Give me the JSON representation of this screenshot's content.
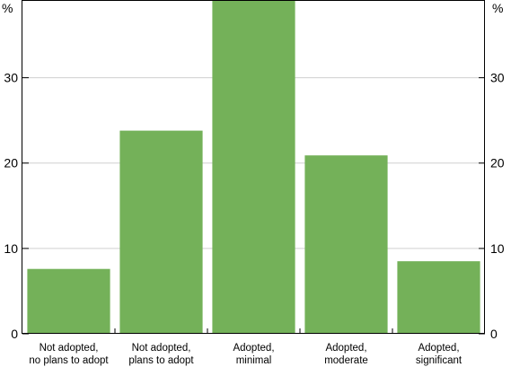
{
  "chart_data": {
    "type": "bar",
    "title": "",
    "xlabel": "",
    "ylabel": "%",
    "y_unit_left": "%",
    "y_unit_right": "%",
    "ylim": [
      0,
      39
    ],
    "yticks": [
      0,
      10,
      20,
      30
    ],
    "grid": true,
    "categories": [
      [
        "Not adopted,",
        "no plans to adopt"
      ],
      [
        "Not adopted,",
        "plans to adopt"
      ],
      [
        "Adopted,",
        "minimal"
      ],
      [
        "Adopted,",
        "moderate"
      ],
      [
        "Adopted,",
        "significant"
      ]
    ],
    "values": [
      7.6,
      23.8,
      39.0,
      20.9,
      8.5
    ],
    "bar_color": "#74b159"
  }
}
